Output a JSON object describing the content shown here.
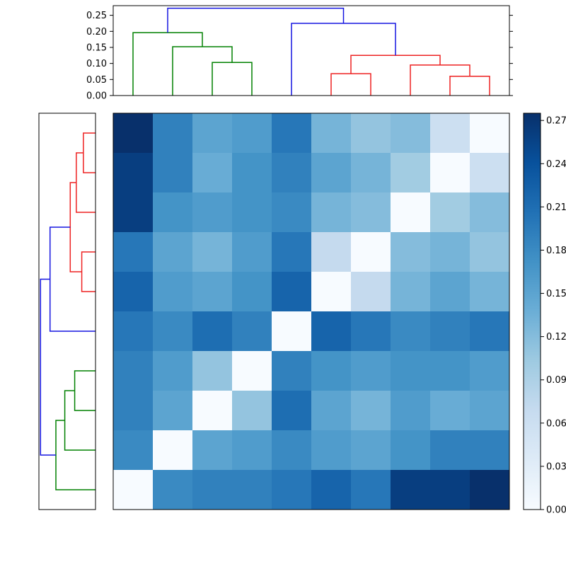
{
  "figure": {
    "background": "#ffffff",
    "frame_color": "#000000"
  },
  "colormap": {
    "name": "Blues",
    "stops": [
      [
        0.0,
        "#f7fbff"
      ],
      [
        0.125,
        "#deebf7"
      ],
      [
        0.25,
        "#c6dbef"
      ],
      [
        0.375,
        "#9ecae1"
      ],
      [
        0.5,
        "#6baed6"
      ],
      [
        0.625,
        "#4292c6"
      ],
      [
        0.75,
        "#2171b5"
      ],
      [
        0.875,
        "#08519c"
      ],
      [
        1.0,
        "#08306b"
      ]
    ]
  },
  "chart_data": {
    "type": "heatmap",
    "subtype": "clustered-distance-matrix-with-dendrograms",
    "title": "",
    "vmin": 0,
    "vmax": 0.275,
    "grid": false,
    "row_order_leaves": [
      10,
      9,
      8,
      7,
      6,
      5,
      4,
      3,
      2,
      1
    ],
    "col_order_leaves": [
      1,
      2,
      3,
      4,
      5,
      6,
      7,
      8,
      9,
      10
    ],
    "distance_matrix": [
      [
        0.0,
        0.18,
        0.19,
        0.19,
        0.2,
        0.22,
        0.2,
        0.26,
        0.26,
        0.275
      ],
      [
        0.18,
        0.0,
        0.15,
        0.16,
        0.18,
        0.16,
        0.15,
        0.17,
        0.19,
        0.19
      ],
      [
        0.19,
        0.15,
        0.0,
        0.11,
        0.21,
        0.15,
        0.13,
        0.16,
        0.14,
        0.15
      ],
      [
        0.19,
        0.16,
        0.11,
        0.0,
        0.19,
        0.17,
        0.16,
        0.17,
        0.17,
        0.16
      ],
      [
        0.2,
        0.18,
        0.21,
        0.19,
        0.0,
        0.22,
        0.2,
        0.18,
        0.19,
        0.2
      ],
      [
        0.22,
        0.16,
        0.15,
        0.17,
        0.22,
        0.0,
        0.07,
        0.13,
        0.15,
        0.13
      ],
      [
        0.2,
        0.15,
        0.13,
        0.16,
        0.2,
        0.07,
        0.0,
        0.12,
        0.13,
        0.11
      ],
      [
        0.26,
        0.17,
        0.16,
        0.17,
        0.18,
        0.13,
        0.12,
        0.0,
        0.1,
        0.12
      ],
      [
        0.26,
        0.19,
        0.14,
        0.17,
        0.19,
        0.15,
        0.13,
        0.1,
        0.0,
        0.06
      ],
      [
        0.275,
        0.19,
        0.15,
        0.16,
        0.2,
        0.13,
        0.11,
        0.12,
        0.06,
        0.0
      ]
    ],
    "top_dendrogram": {
      "axis_max": 0.28,
      "leaf_order": [
        1,
        2,
        3,
        4,
        5,
        6,
        7,
        8,
        9,
        10
      ],
      "axis_ticks": [
        {
          "value": 0.0,
          "label": "0.00"
        },
        {
          "value": 0.05,
          "label": "0.05"
        },
        {
          "value": 0.1,
          "label": "0.10"
        },
        {
          "value": 0.15,
          "label": "0.15"
        },
        {
          "value": 0.2,
          "label": "0.20"
        },
        {
          "value": 0.25,
          "label": "0.25"
        }
      ]
    },
    "left_dendrogram": {
      "axis_max": 0.28,
      "leaf_order": [
        10,
        9,
        8,
        7,
        6,
        5,
        4,
        3,
        2,
        1
      ]
    },
    "linkage": [
      {
        "id": "c1",
        "a": 3,
        "b": 4,
        "height": 0.103,
        "color": "#008000"
      },
      {
        "id": "c2",
        "a": 2,
        "b": "c1",
        "height": 0.152,
        "color": "#008000"
      },
      {
        "id": "c3",
        "a": 1,
        "b": "c2",
        "height": 0.196,
        "color": "#008000"
      },
      {
        "id": "c4",
        "a": 6,
        "b": 7,
        "height": 0.068,
        "color": "#ee2222"
      },
      {
        "id": "c5",
        "a": 9,
        "b": 10,
        "height": 0.06,
        "color": "#ee2222"
      },
      {
        "id": "c6",
        "a": 8,
        "b": "c5",
        "height": 0.095,
        "color": "#ee2222"
      },
      {
        "id": "c7",
        "a": "c4",
        "b": "c6",
        "height": 0.125,
        "color": "#ee2222"
      },
      {
        "id": "c8",
        "a": 5,
        "b": "c7",
        "height": 0.225,
        "color": "#1515e0"
      },
      {
        "id": "c9",
        "a": "c3",
        "b": "c8",
        "height": 0.272,
        "color": "#1515e0"
      }
    ],
    "colorbar": {
      "position": "right",
      "ticks": [
        {
          "value": 0.0,
          "label": "0.00"
        },
        {
          "value": 0.03,
          "label": "0.03"
        },
        {
          "value": 0.06,
          "label": "0.06"
        },
        {
          "value": 0.09,
          "label": "0.09"
        },
        {
          "value": 0.12,
          "label": "0.12"
        },
        {
          "value": 0.15,
          "label": "0.15"
        },
        {
          "value": 0.18,
          "label": "0.18"
        },
        {
          "value": 0.21,
          "label": "0.21"
        },
        {
          "value": 0.24,
          "label": "0.24"
        },
        {
          "value": 0.27,
          "label": "0.27"
        }
      ]
    }
  }
}
